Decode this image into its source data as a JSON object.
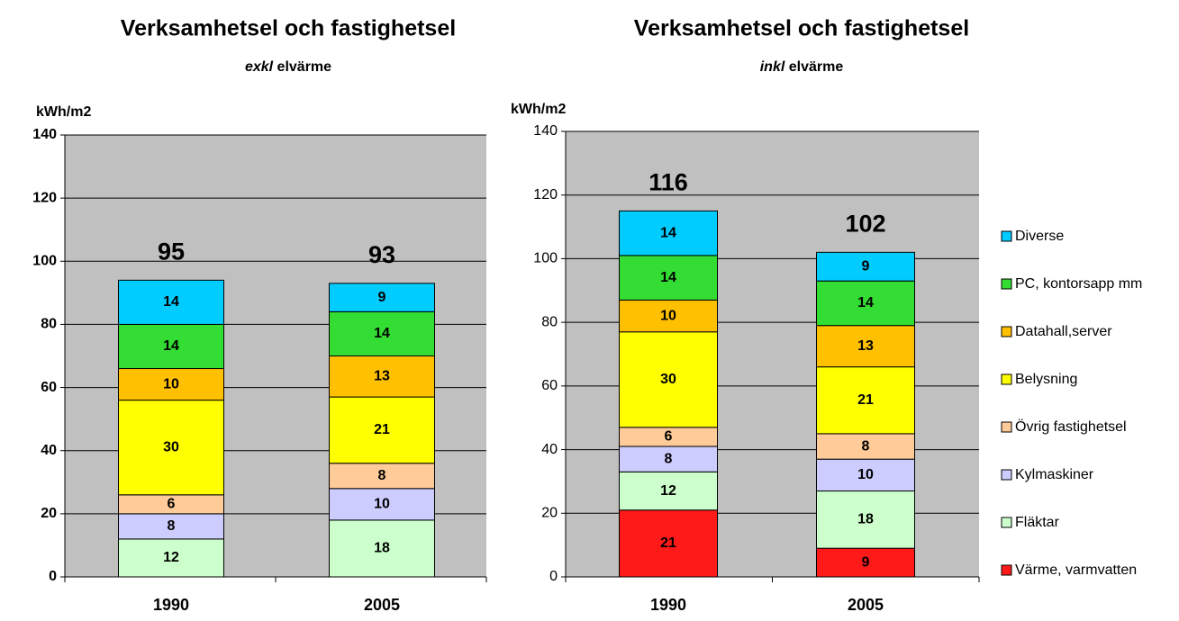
{
  "chart_data": [
    {
      "type": "stacked_bar",
      "title": "Verksamhetsel och fastighetsel",
      "subtitle_emphasis": "exkl",
      "subtitle": "elvärme",
      "ylabel": "kWh/m2",
      "categories": [
        "1990",
        "2005"
      ],
      "ylim": [
        0,
        140
      ],
      "yticks": [
        0,
        20,
        40,
        60,
        80,
        100,
        120,
        140
      ],
      "grid": true,
      "legend": false,
      "totals": [
        95,
        93
      ],
      "series": [
        {
          "name": "Fläktar",
          "color": "#ccffcc",
          "values": [
            12,
            18
          ]
        },
        {
          "name": "Kylmaskiner",
          "color": "#ccccff",
          "values": [
            8,
            10
          ]
        },
        {
          "name": "Övrig fastighetsel",
          "color": "#ffcc99",
          "values": [
            6,
            8
          ]
        },
        {
          "name": "Belysning",
          "color": "#ffff00",
          "values": [
            30,
            21
          ]
        },
        {
          "name": "Datahall,server",
          "color": "#ffc000",
          "values": [
            10,
            13
          ]
        },
        {
          "name": "PC, kontorsapp mm",
          "color": "#33dd33",
          "values": [
            14,
            14
          ]
        },
        {
          "name": "Diverse",
          "color": "#00ccff",
          "values": [
            14,
            9
          ]
        }
      ]
    },
    {
      "type": "stacked_bar",
      "title": "Verksamhetsel och fastighetsel",
      "subtitle_emphasis": "inkl",
      "subtitle": "elvärme",
      "ylabel": "kWh/m2",
      "categories": [
        "1990",
        "2005"
      ],
      "ylim": [
        0,
        140
      ],
      "yticks": [
        0,
        20,
        40,
        60,
        80,
        100,
        120,
        140
      ],
      "grid": true,
      "legend": "right",
      "totals": [
        116,
        102
      ],
      "series": [
        {
          "name": "Värme, varmvatten",
          "color": "#ff1a1a",
          "values": [
            21,
            9
          ]
        },
        {
          "name": "Fläktar",
          "color": "#ccffcc",
          "values": [
            12,
            18
          ]
        },
        {
          "name": "Kylmaskiner",
          "color": "#ccccff",
          "values": [
            8,
            10
          ]
        },
        {
          "name": "Övrig fastighetsel",
          "color": "#ffcc99",
          "values": [
            6,
            8
          ]
        },
        {
          "name": "Belysning",
          "color": "#ffff00",
          "values": [
            30,
            21
          ]
        },
        {
          "name": "Datahall,server",
          "color": "#ffc000",
          "values": [
            10,
            13
          ]
        },
        {
          "name": "PC, kontorsapp mm",
          "color": "#33dd33",
          "values": [
            14,
            14
          ]
        },
        {
          "name": "Diverse",
          "color": "#00ccff",
          "values": [
            14,
            9
          ]
        }
      ]
    }
  ]
}
